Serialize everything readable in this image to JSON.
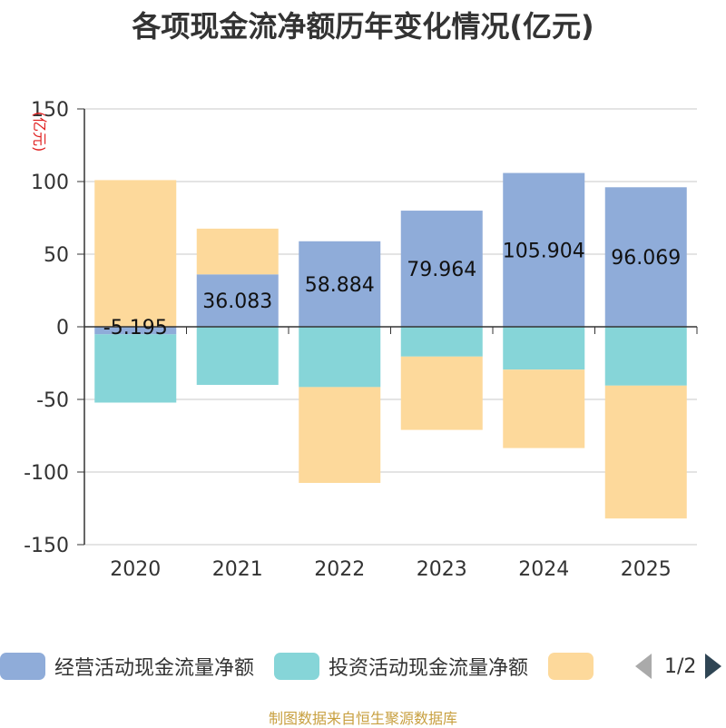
{
  "chart_data": {
    "type": "bar",
    "stacked": true,
    "title": "各项现金流净额历年变化情况(亿元)",
    "ylabel": "(亿元)",
    "xlabel": "",
    "ylim": [
      -150,
      150
    ],
    "yticks": [
      150,
      100,
      50,
      0,
      -50,
      -100,
      -150
    ],
    "categories": [
      "2020",
      "2021",
      "2022",
      "2023",
      "2024",
      "2025"
    ],
    "series": [
      {
        "name": "经营活动现金流量净额",
        "color": "#8facd9",
        "values": [
          -5.195,
          36.083,
          58.884,
          79.964,
          105.904,
          96.069
        ],
        "labels": [
          "-5.195",
          "36.083",
          "58.884",
          "79.964",
          "105.904",
          "96.069"
        ]
      },
      {
        "name": "投资活动现金流量净额",
        "color": "#86d5d8",
        "values": [
          -47,
          -40,
          -41.5,
          -20.5,
          -29.5,
          -40.5
        ]
      },
      {
        "name": "",
        "color": "#fdd99b",
        "values": [
          101,
          31.5,
          -66,
          -50.5,
          -54,
          -91.5
        ]
      }
    ],
    "legend_position": "bottom",
    "grid": true
  },
  "legend": {
    "page": "1/2"
  },
  "source": "制图数据来自恒生聚源数据库"
}
